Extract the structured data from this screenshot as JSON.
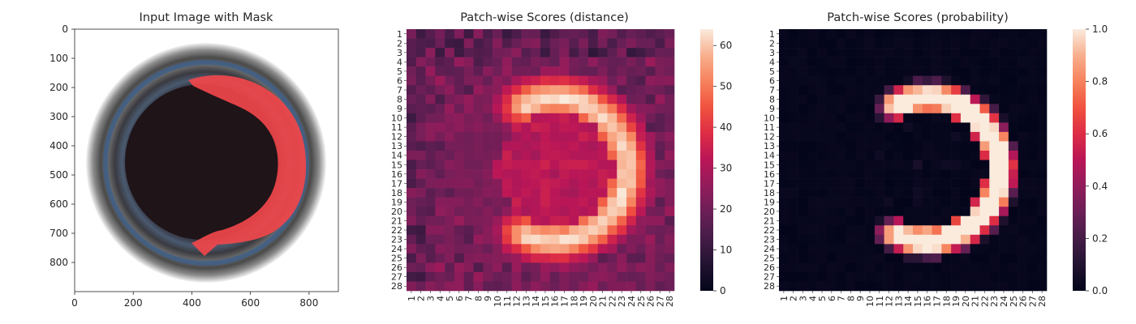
{
  "panels": [
    {
      "title": "Input Image with Mask",
      "x_ticks": [
        0,
        200,
        400,
        600,
        800
      ],
      "y_ticks": [
        0,
        100,
        200,
        300,
        400,
        500,
        600,
        700,
        800
      ],
      "x_range": [
        0,
        900
      ],
      "y_range": [
        0,
        900
      ]
    },
    {
      "title": "Patch-wise Scores (distance)",
      "colorbar_ticks": [
        0,
        10,
        20,
        30,
        40,
        50,
        60
      ],
      "colorbar_range": [
        0,
        64
      ]
    },
    {
      "title": "Patch-wise Scores (probability)",
      "colorbar_ticks": [
        "0.0",
        "0.2",
        "0.4",
        "0.6",
        "0.8",
        "1.0"
      ],
      "colorbar_range": [
        0,
        1
      ]
    }
  ],
  "chart_data": [
    {
      "type": "image",
      "title": "Input Image with Mask",
      "xlim": [
        0,
        900
      ],
      "ylim": [
        900,
        0
      ],
      "description_colors": {
        "mask": "#f0464b",
        "ring": "#5a5a5a",
        "hole": "#1f1418"
      }
    },
    {
      "type": "heatmap",
      "title": "Patch-wise Scores (distance)",
      "rows": 28,
      "cols": 28,
      "row_labels": [
        "1",
        "2",
        "3",
        "4",
        "5",
        "6",
        "7",
        "8",
        "9",
        "10",
        "11",
        "12",
        "13",
        "14",
        "15",
        "16",
        "17",
        "18",
        "19",
        "20",
        "21",
        "22",
        "23",
        "24",
        "25",
        "26",
        "27",
        "28"
      ],
      "col_labels": [
        "1",
        "2",
        "3",
        "4",
        "5",
        "6",
        "7",
        "8",
        "9",
        "10",
        "11",
        "12",
        "13",
        "14",
        "15",
        "16",
        "17",
        "18",
        "19",
        "20",
        "21",
        "22",
        "23",
        "24",
        "25",
        "26",
        "27",
        "28"
      ],
      "value_range": [
        0,
        64
      ],
      "colormap": "rocket",
      "pattern": "C-shaped high-value arc (centre ~row 15.5, col 16, radius ~7.5), peak ~63 near rows 9-11 col 22 and rows 23-25 col 15-18"
    },
    {
      "type": "heatmap",
      "title": "Patch-wise Scores (probability)",
      "rows": 28,
      "cols": 28,
      "row_labels": [
        "1",
        "2",
        "3",
        "4",
        "5",
        "6",
        "7",
        "8",
        "9",
        "10",
        "11",
        "12",
        "13",
        "14",
        "15",
        "16",
        "17",
        "18",
        "19",
        "20",
        "21",
        "22",
        "23",
        "24",
        "25",
        "26",
        "27",
        "28"
      ],
      "col_labels": [
        "1",
        "2",
        "3",
        "4",
        "5",
        "6",
        "7",
        "8",
        "9",
        "10",
        "11",
        "12",
        "13",
        "14",
        "15",
        "16",
        "17",
        "18",
        "19",
        "20",
        "21",
        "22",
        "23",
        "24",
        "25",
        "26",
        "27",
        "28"
      ],
      "value_range": [
        0,
        1
      ],
      "colormap": "rocket",
      "pattern": "C-shaped arc of probability ~0.8-1.0 on a background of ~0.0"
    }
  ]
}
